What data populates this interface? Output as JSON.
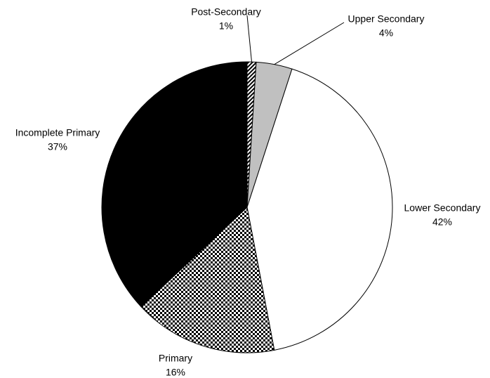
{
  "chart_data": {
    "type": "pie",
    "categories": [
      "Post-Secondary",
      "Upper Secondary",
      "Lower Secondary",
      "Primary",
      "Incomplete Primary"
    ],
    "values": [
      1,
      4,
      42,
      16,
      37
    ],
    "value_labels": [
      "1%",
      "4%",
      "42%",
      "16%",
      "37%"
    ],
    "fills": [
      "hatch",
      "#c0c0c0",
      "#ffffff",
      "checker",
      "#000000"
    ]
  }
}
